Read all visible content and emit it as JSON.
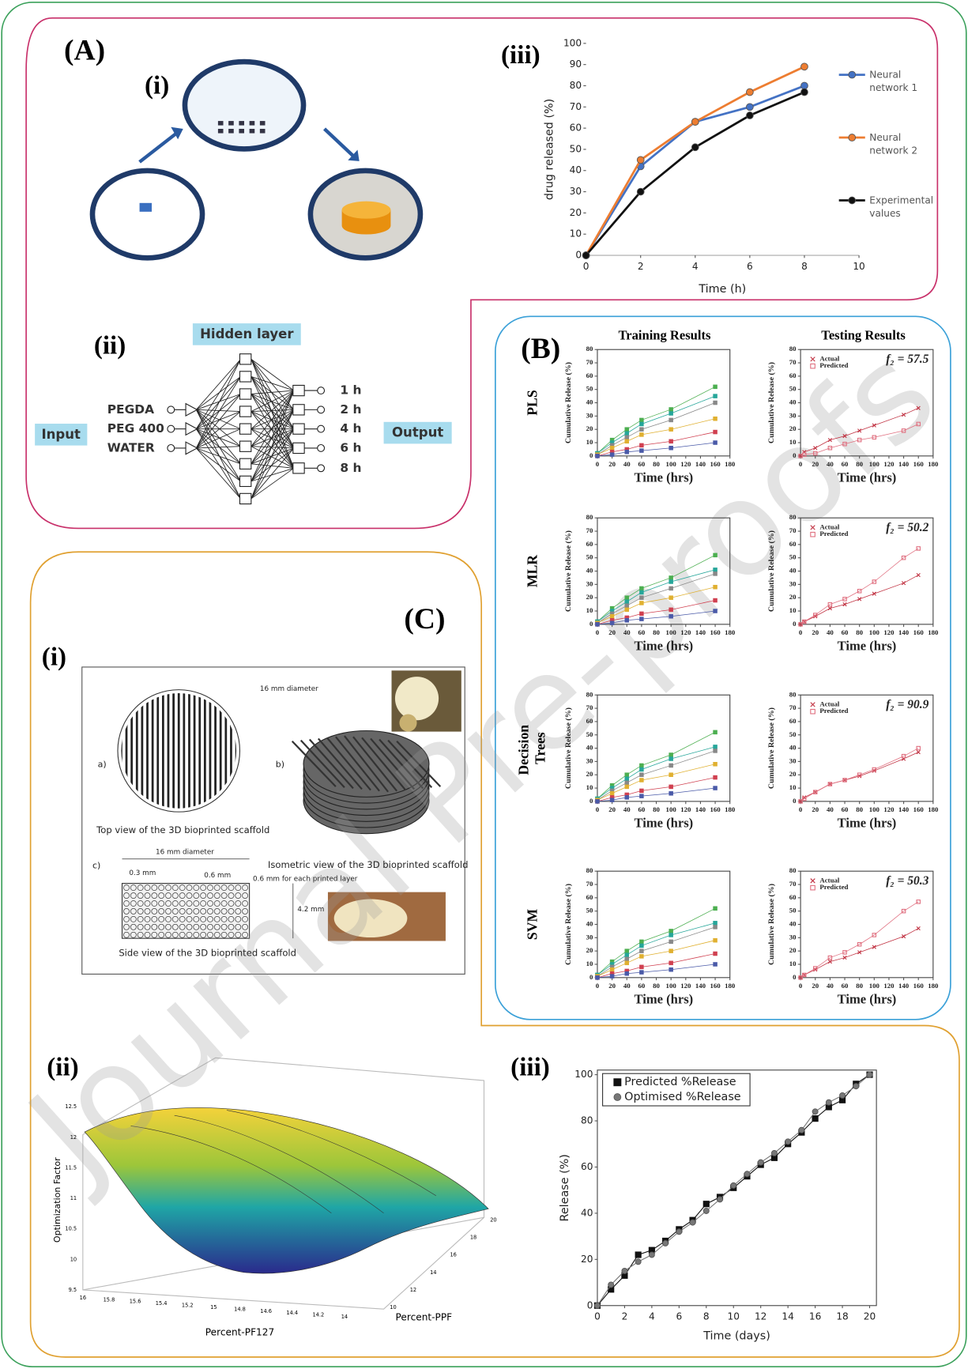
{
  "labels": {
    "A": "(A)",
    "A_i": "(i)",
    "A_ii": "(ii)",
    "A_iii": "(iii)",
    "B": "(B)",
    "C": "(C)",
    "C_i": "(i)",
    "C_ii": "(ii)",
    "C_iii": "(iii)"
  },
  "watermark": "Journal Pre-proofs",
  "neural_network": {
    "hidden": "Hidden layer",
    "input": "Input",
    "output": "Output",
    "inputs": [
      "PEGDA",
      "PEG 400",
      "WATER"
    ],
    "outputs": [
      "1 h",
      "2 h",
      "4 h",
      "6 h",
      "8 h"
    ]
  },
  "panel_b": {
    "columns": [
      "Training Results",
      "Testing Results"
    ],
    "rows": [
      "PLS",
      "MLR",
      "Decision Trees",
      "SVM"
    ]
  },
  "scaffold": {
    "a": "a)",
    "b": "b)",
    "c": "c)",
    "diameter_top": "16 mm diameter",
    "top_caption": "Top view of the 3D bioprinted scaffold",
    "iso_caption": "Isometric view of the 3D bioprinted scaffold",
    "diameter_side": "16 mm diameter",
    "gap1": "0.3 mm",
    "gap2": "0.6 mm",
    "layer": "0.6 mm for each printed layer",
    "height": "4.2 mm",
    "side_caption": "Side view of the 3D bioprinted scaffold"
  },
  "surface": {
    "zlabel": "Optimization Factor",
    "xlabel": "Percent-PF127",
    "ylabel": "Percent-PPF",
    "zticks": [
      "9.5",
      "10",
      "10.5",
      "11",
      "11.5",
      "12",
      "12.5"
    ],
    "xticks": [
      "16",
      "15.8",
      "15.6",
      "15.4",
      "15.2",
      "15",
      "14.8",
      "14.6",
      "14.4",
      "14.2",
      "14"
    ],
    "yticks": [
      "10",
      "12",
      "14",
      "16",
      "18",
      "20"
    ]
  },
  "chart_data": [
    {
      "type": "line",
      "xlabel": "Time (h)",
      "ylabel": "drug released (%)",
      "x": [
        0,
        2,
        4,
        6,
        8
      ],
      "xlim": [
        0,
        10
      ],
      "xticks": [
        0,
        2,
        4,
        6,
        8,
        10
      ],
      "ylim": [
        0,
        100
      ],
      "yticks": [
        0,
        10,
        20,
        30,
        40,
        50,
        60,
        70,
        80,
        90,
        100
      ],
      "legend": "right",
      "grid": false,
      "frame": false,
      "series": [
        {
          "name": "Neural network 1",
          "color": "#4472c4",
          "marker": "circle",
          "values": [
            0,
            42,
            63,
            70,
            80
          ]
        },
        {
          "name": "Neural network 2",
          "color": "#ed7d31",
          "marker": "circle",
          "values": [
            0,
            45,
            63,
            77,
            89
          ]
        },
        {
          "name": "Experimental values",
          "color": "#111111",
          "marker": "circle",
          "values": [
            0,
            30,
            51,
            66,
            77
          ]
        }
      ]
    },
    {
      "type": "line",
      "xlabel": "Time (hrs)",
      "ylabel": "Cumulative Release (%)",
      "x": [
        0,
        20,
        40,
        60,
        100,
        160
      ],
      "xlim": [
        0,
        180
      ],
      "xticks": [
        0,
        20,
        40,
        60,
        80,
        100,
        120,
        140,
        160,
        180
      ],
      "ylim": [
        0,
        80
      ],
      "yticks": [
        0,
        10,
        20,
        30,
        40,
        50,
        60,
        70,
        80
      ],
      "frame": true,
      "grid": false,
      "series": [
        {
          "color": "#4caf50",
          "marker": "square",
          "values": [
            2,
            12,
            20,
            27,
            35,
            52
          ]
        },
        {
          "color": "#26a69a",
          "marker": "square",
          "values": [
            2,
            10,
            17,
            24,
            32,
            45
          ]
        },
        {
          "color": "#888888",
          "marker": "square",
          "values": [
            1,
            8,
            14,
            20,
            27,
            40
          ]
        },
        {
          "color": "#e0b030",
          "marker": "square",
          "values": [
            1,
            6,
            11,
            16,
            20,
            28
          ]
        },
        {
          "color": "#d04050",
          "marker": "square",
          "values": [
            0,
            3,
            5,
            8,
            11,
            18
          ]
        },
        {
          "color": "#4a5aa8",
          "marker": "square",
          "values": [
            0,
            1,
            3,
            4,
            6,
            10
          ]
        }
      ]
    },
    {
      "type": "line",
      "xlabel": "Time (hrs)",
      "ylabel": "Cumulative Release (%)",
      "x": [
        0,
        5,
        20,
        40,
        60,
        80,
        100,
        140,
        160
      ],
      "xlim": [
        0,
        180
      ],
      "xticks": [
        0,
        20,
        40,
        60,
        80,
        100,
        120,
        140,
        160,
        180
      ],
      "ylim": [
        0,
        80
      ],
      "yticks": [
        0,
        10,
        20,
        30,
        40,
        50,
        60,
        70,
        80
      ],
      "frame": true,
      "grid": false,
      "legend": "upper left",
      "annotation": "f₂ = 57.5",
      "series": [
        {
          "name": "Actual",
          "color": "#c03040",
          "marker": "x",
          "values": [
            0,
            3,
            6,
            12,
            15,
            19,
            23,
            31,
            36
          ]
        },
        {
          "name": "Predicted",
          "color": "#e07080",
          "marker": "square",
          "values": [
            0,
            1,
            2,
            6,
            9,
            12,
            14,
            19,
            24
          ]
        }
      ]
    },
    {
      "type": "line",
      "xlabel": "Time (hrs)",
      "ylabel": "Cumulative Release (%)",
      "x": [
        0,
        20,
        40,
        60,
        100,
        160
      ],
      "xlim": [
        0,
        180
      ],
      "xticks": [
        0,
        20,
        40,
        60,
        80,
        100,
        120,
        140,
        160,
        180
      ],
      "ylim": [
        0,
        80
      ],
      "yticks": [
        0,
        10,
        20,
        30,
        40,
        50,
        60,
        70,
        80
      ],
      "frame": true,
      "grid": false,
      "series": [
        {
          "color": "#4caf50",
          "marker": "square",
          "values": [
            2,
            12,
            20,
            27,
            35,
            52
          ]
        },
        {
          "color": "#26a69a",
          "marker": "square",
          "values": [
            2,
            10,
            17,
            24,
            32,
            41
          ]
        },
        {
          "color": "#888888",
          "marker": "square",
          "values": [
            1,
            8,
            14,
            20,
            27,
            38
          ]
        },
        {
          "color": "#e0b030",
          "marker": "square",
          "values": [
            1,
            6,
            11,
            16,
            20,
            28
          ]
        },
        {
          "color": "#d04050",
          "marker": "square",
          "values": [
            0,
            3,
            5,
            8,
            11,
            18
          ]
        },
        {
          "color": "#4a5aa8",
          "marker": "square",
          "values": [
            0,
            1,
            3,
            4,
            6,
            10
          ]
        }
      ]
    },
    {
      "type": "line",
      "xlabel": "Time (hrs)",
      "ylabel": "Cumulative Release (%)",
      "x": [
        0,
        5,
        20,
        40,
        60,
        80,
        100,
        140,
        160
      ],
      "xlim": [
        0,
        180
      ],
      "xticks": [
        0,
        20,
        40,
        60,
        80,
        100,
        120,
        140,
        160,
        180
      ],
      "ylim": [
        0,
        80
      ],
      "yticks": [
        0,
        10,
        20,
        30,
        40,
        50,
        60,
        70,
        80
      ],
      "frame": true,
      "grid": false,
      "legend": "upper left",
      "annotation": "f₂ = 50.2",
      "series": [
        {
          "name": "Actual",
          "color": "#c03040",
          "marker": "x",
          "values": [
            0,
            2,
            6,
            12,
            15,
            19,
            23,
            31,
            37
          ]
        },
        {
          "name": "Predicted",
          "color": "#e07080",
          "marker": "square",
          "values": [
            0,
            2,
            7,
            15,
            19,
            25,
            32,
            50,
            57
          ]
        }
      ]
    },
    {
      "type": "line",
      "xlabel": "Time (hrs)",
      "ylabel": "Cumulative Release (%)",
      "x": [
        0,
        20,
        40,
        60,
        100,
        160
      ],
      "xlim": [
        0,
        180
      ],
      "xticks": [
        0,
        20,
        40,
        60,
        80,
        100,
        120,
        140,
        160,
        180
      ],
      "ylim": [
        0,
        80
      ],
      "yticks": [
        0,
        10,
        20,
        30,
        40,
        50,
        60,
        70,
        80
      ],
      "frame": true,
      "grid": false,
      "series": [
        {
          "color": "#4caf50",
          "marker": "square",
          "values": [
            2,
            12,
            20,
            27,
            35,
            52
          ]
        },
        {
          "color": "#26a69a",
          "marker": "square",
          "values": [
            2,
            10,
            17,
            24,
            32,
            41
          ]
        },
        {
          "color": "#888888",
          "marker": "square",
          "values": [
            1,
            8,
            14,
            20,
            27,
            38
          ]
        },
        {
          "color": "#e0b030",
          "marker": "square",
          "values": [
            1,
            6,
            11,
            16,
            20,
            28
          ]
        },
        {
          "color": "#d04050",
          "marker": "square",
          "values": [
            0,
            3,
            5,
            8,
            11,
            18
          ]
        },
        {
          "color": "#4a5aa8",
          "marker": "square",
          "values": [
            0,
            1,
            3,
            4,
            6,
            10
          ]
        }
      ]
    },
    {
      "type": "line",
      "xlabel": "Time (hrs)",
      "ylabel": "Cumulative Release (%)",
      "x": [
        0,
        5,
        20,
        40,
        60,
        80,
        100,
        140,
        160
      ],
      "xlim": [
        0,
        180
      ],
      "xticks": [
        0,
        20,
        40,
        60,
        80,
        100,
        120,
        140,
        160,
        180
      ],
      "ylim": [
        0,
        80
      ],
      "yticks": [
        0,
        10,
        20,
        30,
        40,
        50,
        60,
        70,
        80
      ],
      "frame": true,
      "grid": false,
      "legend": "upper left",
      "annotation": "f₂ = 90.9",
      "series": [
        {
          "name": "Actual",
          "color": "#c03040",
          "marker": "x",
          "values": [
            0,
            3,
            7,
            13,
            16,
            19,
            23,
            32,
            37
          ]
        },
        {
          "name": "Predicted",
          "color": "#e07080",
          "marker": "square",
          "values": [
            0,
            2,
            7,
            13,
            16,
            20,
            24,
            34,
            40
          ]
        }
      ]
    },
    {
      "type": "line",
      "xlabel": "Time (hrs)",
      "ylabel": "Cumulative Release (%)",
      "x": [
        0,
        20,
        40,
        60,
        100,
        160
      ],
      "xlim": [
        0,
        180
      ],
      "xticks": [
        0,
        20,
        40,
        60,
        80,
        100,
        120,
        140,
        160,
        180
      ],
      "ylim": [
        0,
        80
      ],
      "yticks": [
        0,
        10,
        20,
        30,
        40,
        50,
        60,
        70,
        80
      ],
      "frame": true,
      "grid": false,
      "series": [
        {
          "color": "#4caf50",
          "marker": "square",
          "values": [
            2,
            12,
            20,
            27,
            35,
            52
          ]
        },
        {
          "color": "#26a69a",
          "marker": "square",
          "values": [
            2,
            10,
            17,
            24,
            32,
            41
          ]
        },
        {
          "color": "#888888",
          "marker": "square",
          "values": [
            1,
            8,
            14,
            20,
            27,
            38
          ]
        },
        {
          "color": "#e0b030",
          "marker": "square",
          "values": [
            1,
            6,
            11,
            16,
            20,
            28
          ]
        },
        {
          "color": "#d04050",
          "marker": "square",
          "values": [
            0,
            3,
            5,
            8,
            11,
            18
          ]
        },
        {
          "color": "#4a5aa8",
          "marker": "square",
          "values": [
            0,
            1,
            3,
            4,
            6,
            10
          ]
        }
      ]
    },
    {
      "type": "line",
      "xlabel": "Time (hrs)",
      "ylabel": "Cumulative Release (%)",
      "x": [
        0,
        5,
        20,
        40,
        60,
        80,
        100,
        140,
        160
      ],
      "xlim": [
        0,
        180
      ],
      "xticks": [
        0,
        20,
        40,
        60,
        80,
        100,
        120,
        140,
        160,
        180
      ],
      "ylim": [
        0,
        80
      ],
      "yticks": [
        0,
        10,
        20,
        30,
        40,
        50,
        60,
        70,
        80
      ],
      "frame": true,
      "grid": false,
      "legend": "upper left",
      "annotation": "f₂ = 50.3",
      "series": [
        {
          "name": "Actual",
          "color": "#c03040",
          "marker": "x",
          "values": [
            0,
            2,
            6,
            12,
            15,
            19,
            23,
            31,
            37
          ]
        },
        {
          "name": "Predicted",
          "color": "#e07080",
          "marker": "square",
          "values": [
            0,
            2,
            7,
            15,
            19,
            25,
            32,
            50,
            57
          ]
        }
      ]
    },
    {
      "type": "line",
      "xlabel": "Time (days)",
      "ylabel": "Release (%)",
      "x": [
        0,
        1,
        2,
        3,
        4,
        5,
        6,
        7,
        8,
        9,
        10,
        11,
        12,
        13,
        14,
        15,
        16,
        17,
        18,
        19,
        20
      ],
      "xlim": [
        0,
        20.5
      ],
      "xticks": [
        0,
        2,
        4,
        6,
        8,
        10,
        12,
        14,
        16,
        18,
        20
      ],
      "ylim": [
        0,
        102
      ],
      "yticks": [
        0,
        20,
        40,
        60,
        80,
        100
      ],
      "frame": true,
      "grid": false,
      "legend": "upper left",
      "series": [
        {
          "name": "Predicted %Release",
          "color": "#111111",
          "marker": "square",
          "values": [
            0,
            7,
            13,
            22,
            24,
            28,
            33,
            37,
            44,
            47,
            51,
            56,
            61,
            64,
            70,
            75,
            81,
            86,
            89,
            96,
            100
          ]
        },
        {
          "name": "Optimised %Release",
          "color": "#777777",
          "marker": "circle",
          "values": [
            0,
            9,
            15,
            19,
            22,
            27,
            32,
            36,
            41,
            46,
            52,
            57,
            62,
            66,
            71,
            76,
            84,
            88,
            91,
            95,
            100
          ]
        }
      ]
    }
  ]
}
